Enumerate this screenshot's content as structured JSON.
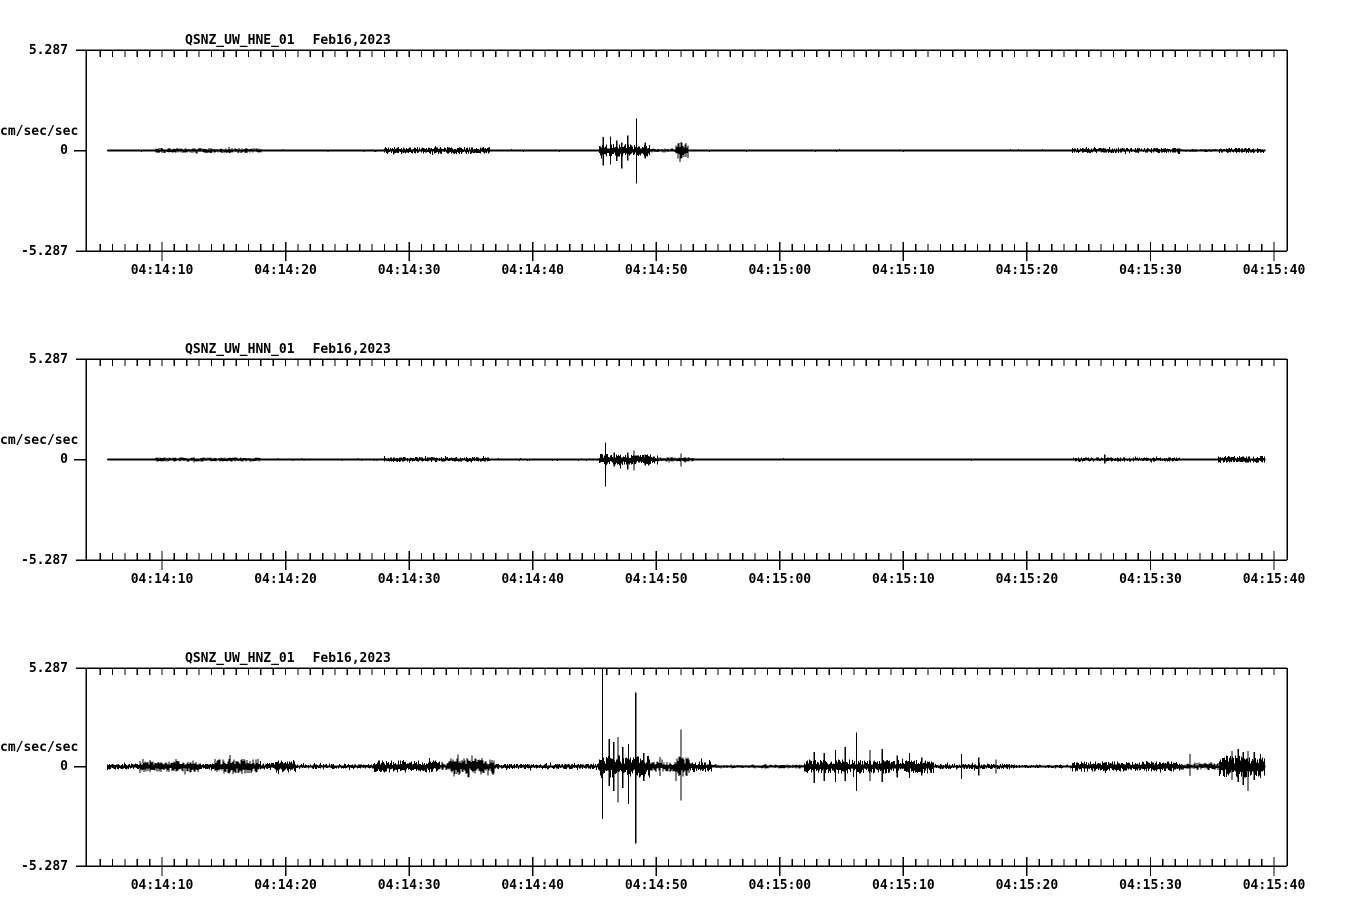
{
  "colors": {
    "background": "#ffffff",
    "ink": "#000000"
  },
  "chart_data": [
    {
      "type": "line",
      "station": "QSNZ_UW_HNE_01",
      "date": "Feb16,2023",
      "ylabel": "cm/sec/sec",
      "ylim": [
        -5.287,
        5.287
      ],
      "ytick_labels": [
        "5.287",
        "0",
        "-5.287"
      ],
      "xtick_labels": [
        "04:14:10",
        "04:14:20",
        "04:14:30",
        "04:14:40",
        "04:14:50",
        "04:15:00",
        "04:15:10",
        "04:15:20",
        "04:15:30",
        "04:15:40"
      ],
      "xtick_seconds": [
        10,
        20,
        30,
        40,
        50,
        60,
        70,
        80,
        90,
        100
      ],
      "x_time_base": "04:14:00",
      "x_window_seconds": [
        3.9,
        101.1
      ],
      "trace": {
        "start_s": 5.6,
        "end_s": 99.3,
        "noise_bands": [
          [
            5.6,
            9.5,
            0.06
          ],
          [
            9.5,
            18,
            0.14
          ],
          [
            18,
            28,
            0.06
          ],
          [
            28,
            36.5,
            0.18
          ],
          [
            36.5,
            45.4,
            0.06
          ],
          [
            45.4,
            49.5,
            0.33
          ],
          [
            49.5,
            51.6,
            0.1
          ],
          [
            51.6,
            52.6,
            0.42
          ],
          [
            52.6,
            83.7,
            0.05
          ],
          [
            83.7,
            92.4,
            0.14
          ],
          [
            92.4,
            95.6,
            0.08
          ],
          [
            95.6,
            99.3,
            0.13
          ]
        ],
        "spikes": [
          [
            45.7,
            0.7,
            0.8
          ],
          [
            46.3,
            0.73,
            0.73
          ],
          [
            46.8,
            0.52,
            0.55
          ],
          [
            47.2,
            0.42,
            0.94
          ],
          [
            47.7,
            0.79,
            0.52
          ],
          [
            48.4,
            1.68,
            1.73
          ],
          [
            49.1,
            0.42,
            0.42
          ],
          [
            52.0,
            0.45,
            0.42
          ]
        ]
      }
    },
    {
      "type": "line",
      "station": "QSNZ_UW_HNN_01",
      "date": "Feb16,2023",
      "ylabel": "cm/sec/sec",
      "ylim": [
        -5.287,
        5.287
      ],
      "ytick_labels": [
        "5.287",
        "0",
        "-5.287"
      ],
      "xtick_labels": [
        "04:14:10",
        "04:14:20",
        "04:14:30",
        "04:14:40",
        "04:14:50",
        "04:15:00",
        "04:15:10",
        "04:15:20",
        "04:15:30",
        "04:15:40"
      ],
      "xtick_seconds": [
        10,
        20,
        30,
        40,
        50,
        60,
        70,
        80,
        90,
        100
      ],
      "x_time_base": "04:14:00",
      "x_window_seconds": [
        3.9,
        101.1
      ],
      "trace": {
        "start_s": 5.6,
        "end_s": 99.3,
        "noise_bands": [
          [
            5.6,
            9.5,
            0.05
          ],
          [
            9.5,
            18,
            0.11
          ],
          [
            18,
            28,
            0.06
          ],
          [
            28,
            36.5,
            0.13
          ],
          [
            36.5,
            45.4,
            0.06
          ],
          [
            45.4,
            50,
            0.28
          ],
          [
            50,
            53,
            0.12
          ],
          [
            53,
            83.7,
            0.05
          ],
          [
            83.7,
            92.4,
            0.11
          ],
          [
            92.4,
            95.5,
            0.06
          ],
          [
            95.5,
            99.3,
            0.18
          ]
        ],
        "spikes": [
          [
            45.9,
            0.89,
            1.41
          ],
          [
            46.6,
            0.37,
            0.37
          ],
          [
            47.1,
            0.26,
            0.47
          ],
          [
            47.7,
            0.37,
            0.52
          ],
          [
            48.2,
            0.47,
            0.58
          ],
          [
            49.1,
            0.26,
            0.31
          ],
          [
            50.1,
            0.21,
            0.26
          ],
          [
            52.0,
            0.31,
            0.36
          ],
          [
            86.3,
            0.26,
            0.21
          ]
        ]
      }
    },
    {
      "type": "line",
      "station": "QSNZ_UW_HNZ_01",
      "date": "Feb16,2023",
      "ylabel": "cm/sec/sec",
      "ylim": [
        -5.287,
        5.287
      ],
      "ytick_labels": [
        "5.287",
        "0",
        "-5.287"
      ],
      "xtick_labels": [
        "04:14:10",
        "04:14:20",
        "04:14:30",
        "04:14:40",
        "04:14:50",
        "04:15:00",
        "04:15:10",
        "04:15:20",
        "04:15:30",
        "04:15:40"
      ],
      "xtick_seconds": [
        10,
        20,
        30,
        40,
        50,
        60,
        70,
        80,
        90,
        100
      ],
      "x_time_base": "04:14:00",
      "x_window_seconds": [
        3.9,
        101.1
      ],
      "trace": {
        "start_s": 5.6,
        "end_s": 99.3,
        "noise_bands": [
          [
            5.6,
            8.2,
            0.16
          ],
          [
            8.2,
            13.1,
            0.3
          ],
          [
            13.1,
            14.3,
            0.16
          ],
          [
            14.3,
            17.9,
            0.42
          ],
          [
            17.9,
            19.1,
            0.2
          ],
          [
            19.1,
            20.8,
            0.35
          ],
          [
            20.8,
            27.2,
            0.13
          ],
          [
            27.2,
            32.5,
            0.33
          ],
          [
            32.5,
            33.3,
            0.2
          ],
          [
            33.3,
            36.9,
            0.45
          ],
          [
            36.9,
            45.4,
            0.15
          ],
          [
            45.4,
            49.5,
            0.6
          ],
          [
            49.5,
            51.6,
            0.3
          ],
          [
            51.6,
            52.7,
            0.55
          ],
          [
            52.7,
            54.5,
            0.3
          ],
          [
            54.5,
            62,
            0.1
          ],
          [
            62,
            72.5,
            0.38
          ],
          [
            72.5,
            78.6,
            0.15
          ],
          [
            78.6,
            83.7,
            0.1
          ],
          [
            83.7,
            92.4,
            0.28
          ],
          [
            92.4,
            95.6,
            0.18
          ],
          [
            95.6,
            99.3,
            0.6
          ]
        ],
        "spikes": [
          [
            45.65,
            5.3,
            2.83
          ],
          [
            46.2,
            1.47,
            1.05
          ],
          [
            46.55,
            1.31,
            1.31
          ],
          [
            46.9,
            1.57,
            1.94
          ],
          [
            47.3,
            1.05,
            1.15
          ],
          [
            47.75,
            1.2,
            2.0
          ],
          [
            48.35,
            3.98,
            4.14
          ],
          [
            49.0,
            0.73,
            0.79
          ],
          [
            50.3,
            0.52,
            0.52
          ],
          [
            52.0,
            1.99,
            1.83
          ],
          [
            62.8,
            0.79,
            0.89
          ],
          [
            63.6,
            0.73,
            0.79
          ],
          [
            64.5,
            0.89,
            0.84
          ],
          [
            65.3,
            1.05,
            0.79
          ],
          [
            66.2,
            1.83,
            1.31
          ],
          [
            67.3,
            0.89,
            0.79
          ],
          [
            68.3,
            0.94,
            0.84
          ],
          [
            69.5,
            0.58,
            0.58
          ],
          [
            70.5,
            0.73,
            0.63
          ],
          [
            71.5,
            0.47,
            0.47
          ],
          [
            74.7,
            0.68,
            0.68
          ],
          [
            76.1,
            0.47,
            0.47
          ],
          [
            77.5,
            0.37,
            0.37
          ],
          [
            93.2,
            0.68,
            0.52
          ],
          [
            96.6,
            0.84,
            0.73
          ],
          [
            97.1,
            0.94,
            0.84
          ],
          [
            97.5,
            0.79,
            1.0
          ],
          [
            97.9,
            0.84,
            1.31
          ],
          [
            98.4,
            0.79,
            0.73
          ],
          [
            98.9,
            0.68,
            0.63
          ]
        ]
      }
    }
  ]
}
